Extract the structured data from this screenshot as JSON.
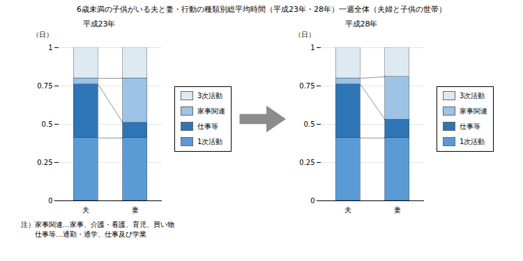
{
  "title": "6歳未満の子供がいる夫と妻・行動の種類別総平均時間（平成23年・28年）一週全体（夫婦と子供の世帯）",
  "annotations": [
    "注）家事関連…家事、介護・看護、育児、買い物",
    "　　仕事等…通勤・通学、仕事及び学業"
  ],
  "chart_data": [
    {
      "type": "bar",
      "title": "平成23年",
      "categories": [
        "夫",
        "妻"
      ],
      "stacked": true,
      "series": [
        {
          "name": "1次活動",
          "color": "#5B9BD5",
          "values": [
            0.41,
            0.41
          ]
        },
        {
          "name": "仕事等",
          "color": "#2E75B6",
          "values": [
            0.35,
            0.1
          ]
        },
        {
          "name": "家事関連",
          "color": "#9DC3E6",
          "values": [
            0.04,
            0.29
          ]
        },
        {
          "name": "3次活動",
          "color": "#DEEAF1",
          "values": [
            0.2,
            0.2
          ]
        }
      ],
      "ylabel": "（日）",
      "ylim": [
        0,
        1
      ],
      "yticks": [
        0,
        0.25,
        0.5,
        0.75,
        1
      ],
      "grid": true,
      "legend": "right"
    },
    {
      "type": "bar",
      "title": "平成28年",
      "categories": [
        "夫",
        "妻"
      ],
      "stacked": true,
      "series": [
        {
          "name": "1次活動",
          "color": "#5B9BD5",
          "values": [
            0.41,
            0.41
          ]
        },
        {
          "name": "仕事等",
          "color": "#2E75B6",
          "values": [
            0.35,
            0.12
          ]
        },
        {
          "name": "家事関連",
          "color": "#9DC3E6",
          "values": [
            0.04,
            0.28
          ]
        },
        {
          "name": "3次活動",
          "color": "#DEEAF1",
          "values": [
            0.2,
            0.19
          ]
        }
      ],
      "ylabel": "（日）",
      "ylim": [
        0,
        1
      ],
      "yticks": [
        0,
        0.25,
        0.5,
        0.75,
        1
      ],
      "grid": true,
      "legend": "right"
    }
  ]
}
